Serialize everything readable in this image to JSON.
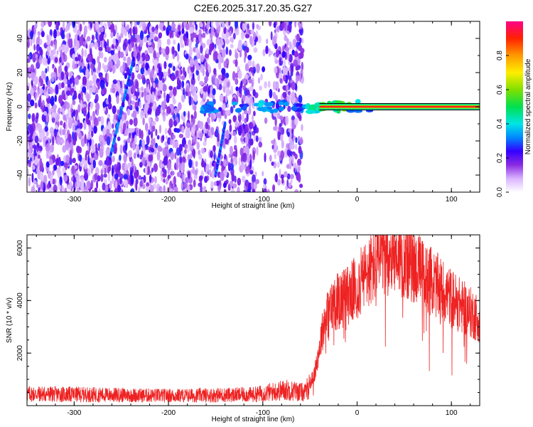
{
  "title": "C2E6.2025.317.20.35.G27",
  "chart_data": [
    {
      "type": "heatmap",
      "xlabel": "Height of straight line (km)",
      "ylabel": "Frequency (Hz)",
      "xlim": [
        -350,
        130
      ],
      "ylim": [
        -50,
        50
      ],
      "xticks": [
        -300,
        -200,
        -100,
        0,
        100
      ],
      "yticks": [
        -40,
        -20,
        0,
        20,
        40
      ],
      "colorbar": {
        "label": "Normalized spectral amplitude",
        "range": [
          0,
          1
        ],
        "ticks": [
          0.0,
          0.2,
          0.4,
          0.6,
          0.8
        ]
      },
      "features": {
        "noise_region_x": [
          -350,
          -58
        ],
        "gap_x": [
          -108,
          -88
        ],
        "signal_band_freq": 0,
        "signal_start_x": -40,
        "streaks": [
          {
            "x0": -262,
            "y0": -30,
            "x1": -237,
            "y1": 28
          },
          {
            "x0": -150,
            "y0": -40,
            "x1": -140,
            "y1": -10
          }
        ]
      }
    },
    {
      "type": "line",
      "xlabel": "Height of straight line (km)",
      "ylabel": "SNR (10 * v/v)",
      "xlim": [
        -350,
        130
      ],
      "ylim": [
        0,
        6500
      ],
      "xticks": [
        -300,
        -200,
        -100,
        0,
        100
      ],
      "yticks": [
        2000,
        4000,
        6000
      ],
      "color": "#ee2222",
      "envelope": [
        {
          "x": -350,
          "y": 450
        },
        {
          "x": -200,
          "y": 380
        },
        {
          "x": -110,
          "y": 420
        },
        {
          "x": -75,
          "y": 600
        },
        {
          "x": -55,
          "y": 500
        },
        {
          "x": -45,
          "y": 1200
        },
        {
          "x": -35,
          "y": 3200
        },
        {
          "x": -25,
          "y": 3900
        },
        {
          "x": -10,
          "y": 4200
        },
        {
          "x": 0,
          "y": 4500
        },
        {
          "x": 10,
          "y": 5000
        },
        {
          "x": 25,
          "y": 5600
        },
        {
          "x": 40,
          "y": 5900
        },
        {
          "x": 55,
          "y": 5500
        },
        {
          "x": 70,
          "y": 5000
        },
        {
          "x": 90,
          "y": 4400
        },
        {
          "x": 110,
          "y": 3800
        },
        {
          "x": 130,
          "y": 3300
        }
      ]
    }
  ]
}
